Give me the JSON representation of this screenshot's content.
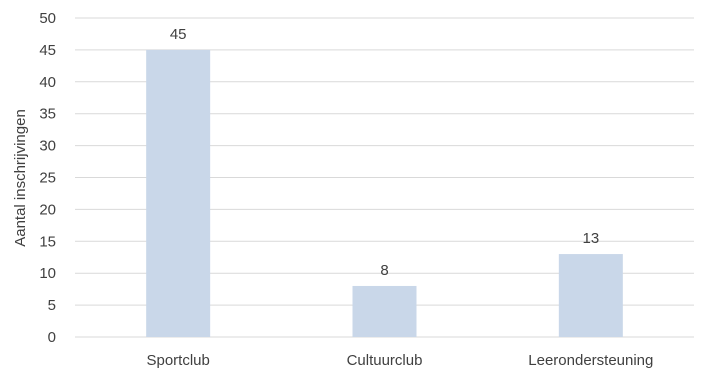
{
  "chart_data": {
    "type": "bar",
    "categories": [
      "Sportclub",
      "Cultuurclub",
      "Leerondersteuning"
    ],
    "values": [
      45,
      8,
      13
    ],
    "ylabel": "Aantal inschrijvingen",
    "ylim": [
      0,
      50
    ],
    "yticks": [
      0,
      5,
      10,
      15,
      20,
      25,
      30,
      35,
      40,
      45,
      50
    ],
    "grid": true,
    "bar_color": "#c9d7e9",
    "data_labels": true
  }
}
